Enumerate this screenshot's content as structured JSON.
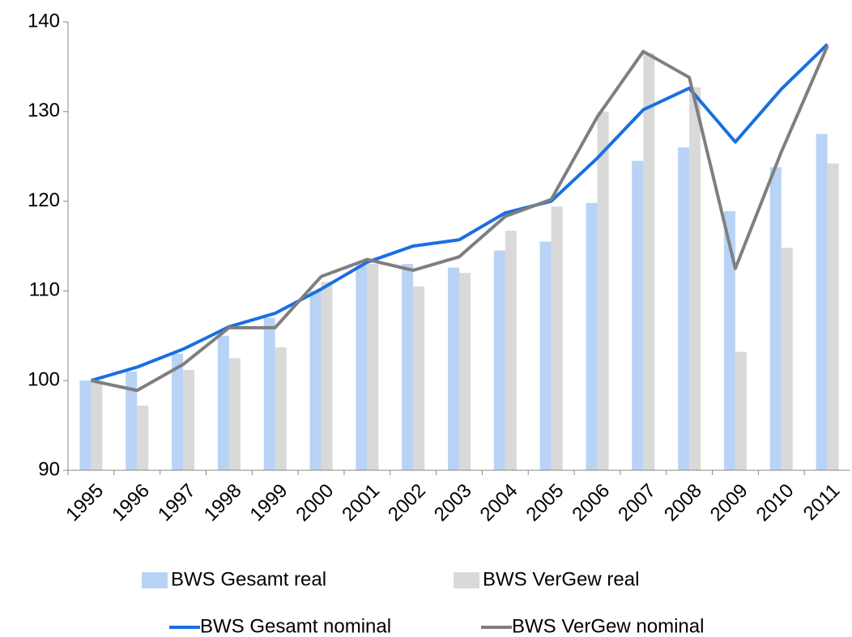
{
  "chart_data": {
    "type": "bar",
    "categories": [
      "1995",
      "1996",
      "1997",
      "1998",
      "1999",
      "2000",
      "2001",
      "2002",
      "2003",
      "2004",
      "2005",
      "2006",
      "2007",
      "2008",
      "2009",
      "2010",
      "2011"
    ],
    "series": [
      {
        "name": "BWS Gesamt real",
        "type": "bar",
        "color": "#b8d3f5",
        "values": [
          100,
          101,
          103,
          105,
          107,
          110,
          113,
          113,
          112.6,
          114.5,
          115.5,
          119.8,
          124.5,
          126,
          118.9,
          123.8,
          127.5
        ]
      },
      {
        "name": "BWS VerGew real",
        "type": "bar",
        "color": "#d9d9d9",
        "values": [
          100,
          97.2,
          101.2,
          102.5,
          103.7,
          111,
          113,
          110.5,
          112,
          116.7,
          119.4,
          130,
          136.5,
          132.7,
          103.2,
          114.8,
          124.2
        ]
      },
      {
        "name": "BWS Gesamt nominal",
        "type": "line",
        "color": "#1a6fe0",
        "values": [
          100,
          101.5,
          103.5,
          106,
          107.5,
          110.2,
          113.2,
          115,
          115.7,
          118.7,
          120,
          124.8,
          130.2,
          132.6,
          126.6,
          132.5,
          137.5
        ]
      },
      {
        "name": "BWS VerGew nominal",
        "type": "line",
        "color": "#7f7f7f",
        "values": [
          100,
          98.9,
          101.8,
          105.9,
          105.9,
          111.6,
          113.5,
          112.3,
          113.8,
          118.3,
          120.2,
          129.4,
          136.7,
          133.8,
          112.5,
          125.5,
          137.3
        ]
      }
    ],
    "ylim": [
      90,
      140
    ],
    "yticks": [
      90,
      100,
      110,
      120,
      130,
      140
    ],
    "grid": false
  }
}
